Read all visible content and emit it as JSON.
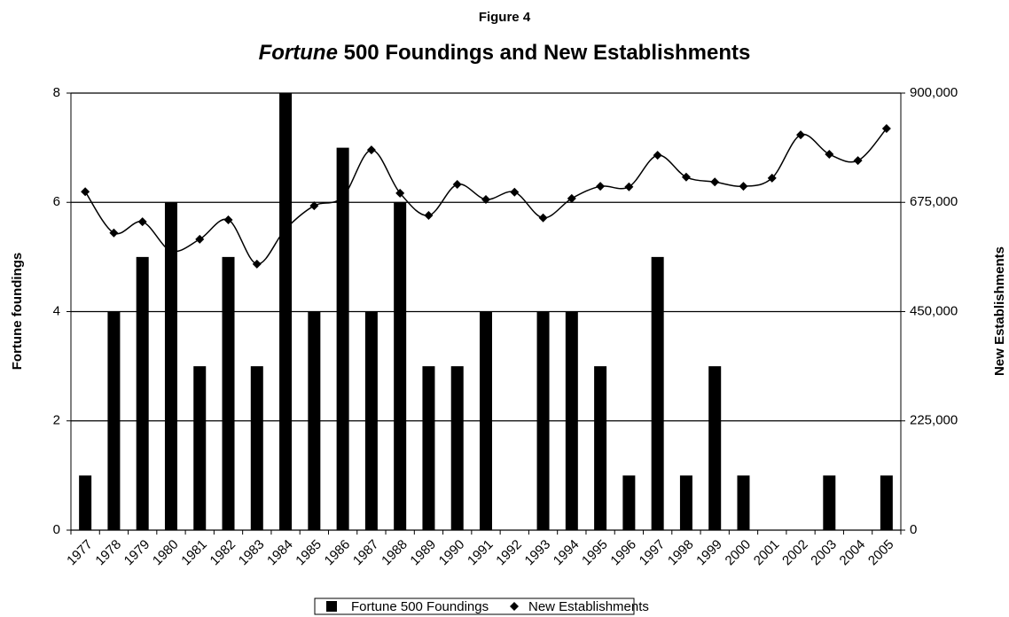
{
  "chart_data": {
    "type": "bar",
    "supertitle": "Figure 4",
    "title": {
      "italic": "Fortune",
      "rest": "500 Foundings and New Establishments"
    },
    "ylabel": "Fortune foundings",
    "y2label": "New Establishments",
    "categories": [
      "1977",
      "1978",
      "1979",
      "1980",
      "1981",
      "1982",
      "1983",
      "1984",
      "1985",
      "1986",
      "1987",
      "1988",
      "1989",
      "1990",
      "1991",
      "1992",
      "1993",
      "1994",
      "1995",
      "1996",
      "1997",
      "1998",
      "1999",
      "2000",
      "2001",
      "2002",
      "2003",
      "2004",
      "2005"
    ],
    "series": [
      {
        "name": "Fortune 500 Foundings",
        "type": "bar",
        "color": "#000000",
        "values": [
          1,
          4,
          5,
          6,
          3,
          5,
          3,
          8,
          4,
          7,
          4,
          6,
          3,
          3,
          4,
          0,
          4,
          4,
          3,
          1,
          5,
          1,
          3,
          1,
          0,
          0,
          1,
          0,
          1
        ]
      },
      {
        "name": "New Establishments",
        "type": "line",
        "axis": "y2",
        "color": "#000000",
        "values": [
          697000,
          612000,
          635000,
          575000,
          599000,
          639000,
          548000,
          620000,
          668000,
          686000,
          783000,
          694000,
          648000,
          712000,
          681000,
          696000,
          643000,
          683000,
          708000,
          707000,
          772000,
          727000,
          717000,
          708000,
          725000,
          814000,
          774000,
          761000,
          827000
        ]
      }
    ],
    "ylim": [
      0,
      8
    ],
    "yticks": [
      0,
      2,
      4,
      6,
      8
    ],
    "y2lim": [
      0,
      900000
    ],
    "y2ticks": [
      0,
      {
        "value": 225000,
        "label": "225,000"
      },
      {
        "value": 450000,
        "label": "450,000"
      },
      {
        "value": 675000,
        "label": "675,000"
      },
      {
        "value": 900000,
        "label": "900,000"
      }
    ],
    "grid": true,
    "legend": "bottom"
  }
}
